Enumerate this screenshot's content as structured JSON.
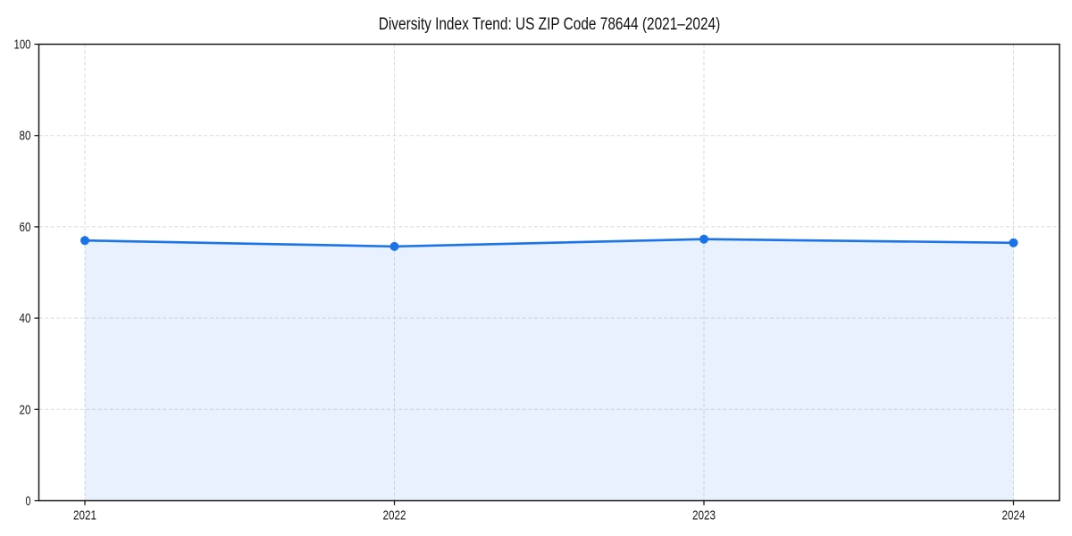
{
  "page": {
    "background": "#ffffff"
  },
  "chart_data": {
    "type": "area",
    "title": "Diversity Index Trend: US ZIP Code 78644 (2021–2024)",
    "categories": [
      "2021",
      "2022",
      "2023",
      "2024"
    ],
    "series": [
      {
        "name": "Diversity Index",
        "values": [
          57.0,
          55.7,
          57.3,
          56.5
        ]
      }
    ],
    "xlabel": "",
    "ylabel": "",
    "ylim": [
      0,
      100
    ],
    "yticks": [
      0,
      20,
      40,
      60,
      80,
      100
    ],
    "grid": true,
    "grid_style": "dashed",
    "legend": "none",
    "marker": "circle",
    "colors": {
      "line": "#1a73e8",
      "marker": "#1a73e8",
      "fill": "rgba(26,115,232,0.10)",
      "grid": "#dadada",
      "spine": "#1a1a1a",
      "tick_text": "#1a1a1a"
    }
  }
}
